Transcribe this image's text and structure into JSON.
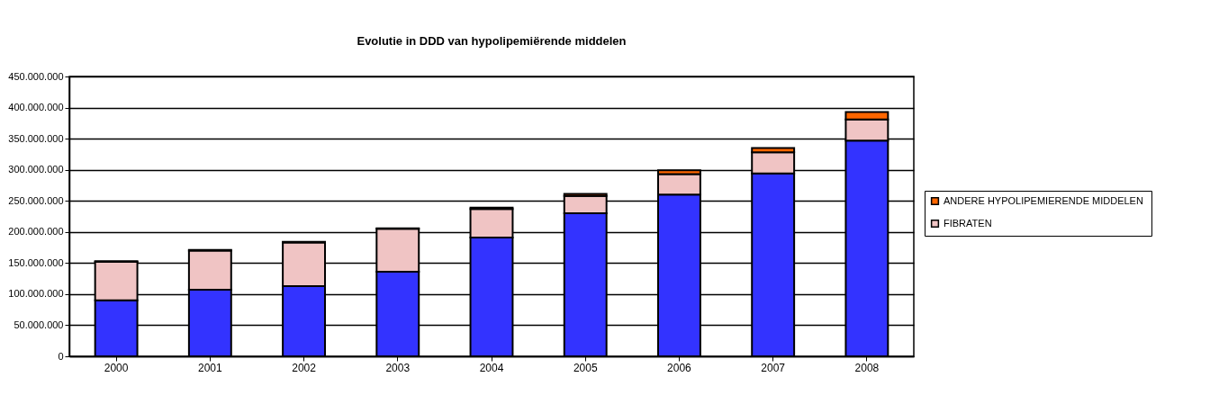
{
  "chart_data": {
    "type": "bar",
    "title": "Evolutie in DDD van hypolipemiërende middelen",
    "stacked": true,
    "categories": [
      "2000",
      "2001",
      "2002",
      "2003",
      "2004",
      "2005",
      "2006",
      "2007",
      "2008"
    ],
    "series": [
      {
        "color": "#3333ff",
        "values": [
          90000000,
          107000000,
          113000000,
          136000000,
          191000000,
          230000000,
          260000000,
          294000000,
          347000000
        ]
      },
      {
        "name": "FIBRATEN",
        "color": "#f0c4c4",
        "values": [
          62000000,
          63000000,
          70000000,
          69000000,
          46000000,
          28000000,
          33000000,
          34000000,
          34000000
        ]
      },
      {
        "name": "ANDERE HYPOLIPEMIERENDE  MIDDELEN",
        "color": "#ff6600",
        "values": [
          1000000,
          1000000,
          1000000,
          1000000,
          2000000,
          3000000,
          6000000,
          7000000,
          12000000
        ]
      }
    ],
    "ylim": [
      0,
      450000000
    ],
    "yticks": [
      0,
      {
        "value": 50000000,
        "label": "50.000.000"
      },
      {
        "value": 100000000,
        "label": "100.000.000"
      },
      {
        "value": 150000000,
        "label": "150.000.000"
      },
      {
        "value": 200000000,
        "label": "200.000.000"
      },
      {
        "value": 250000000,
        "label": "250.000.000"
      },
      {
        "value": 300000000,
        "label": "300.000.000"
      },
      {
        "value": 350000000,
        "label": "350.000.000"
      },
      {
        "value": 400000000,
        "label": "400.000.000"
      },
      {
        "value": 450000000,
        "label": "450.000.000"
      }
    ],
    "grid": "y",
    "legend": "right"
  }
}
